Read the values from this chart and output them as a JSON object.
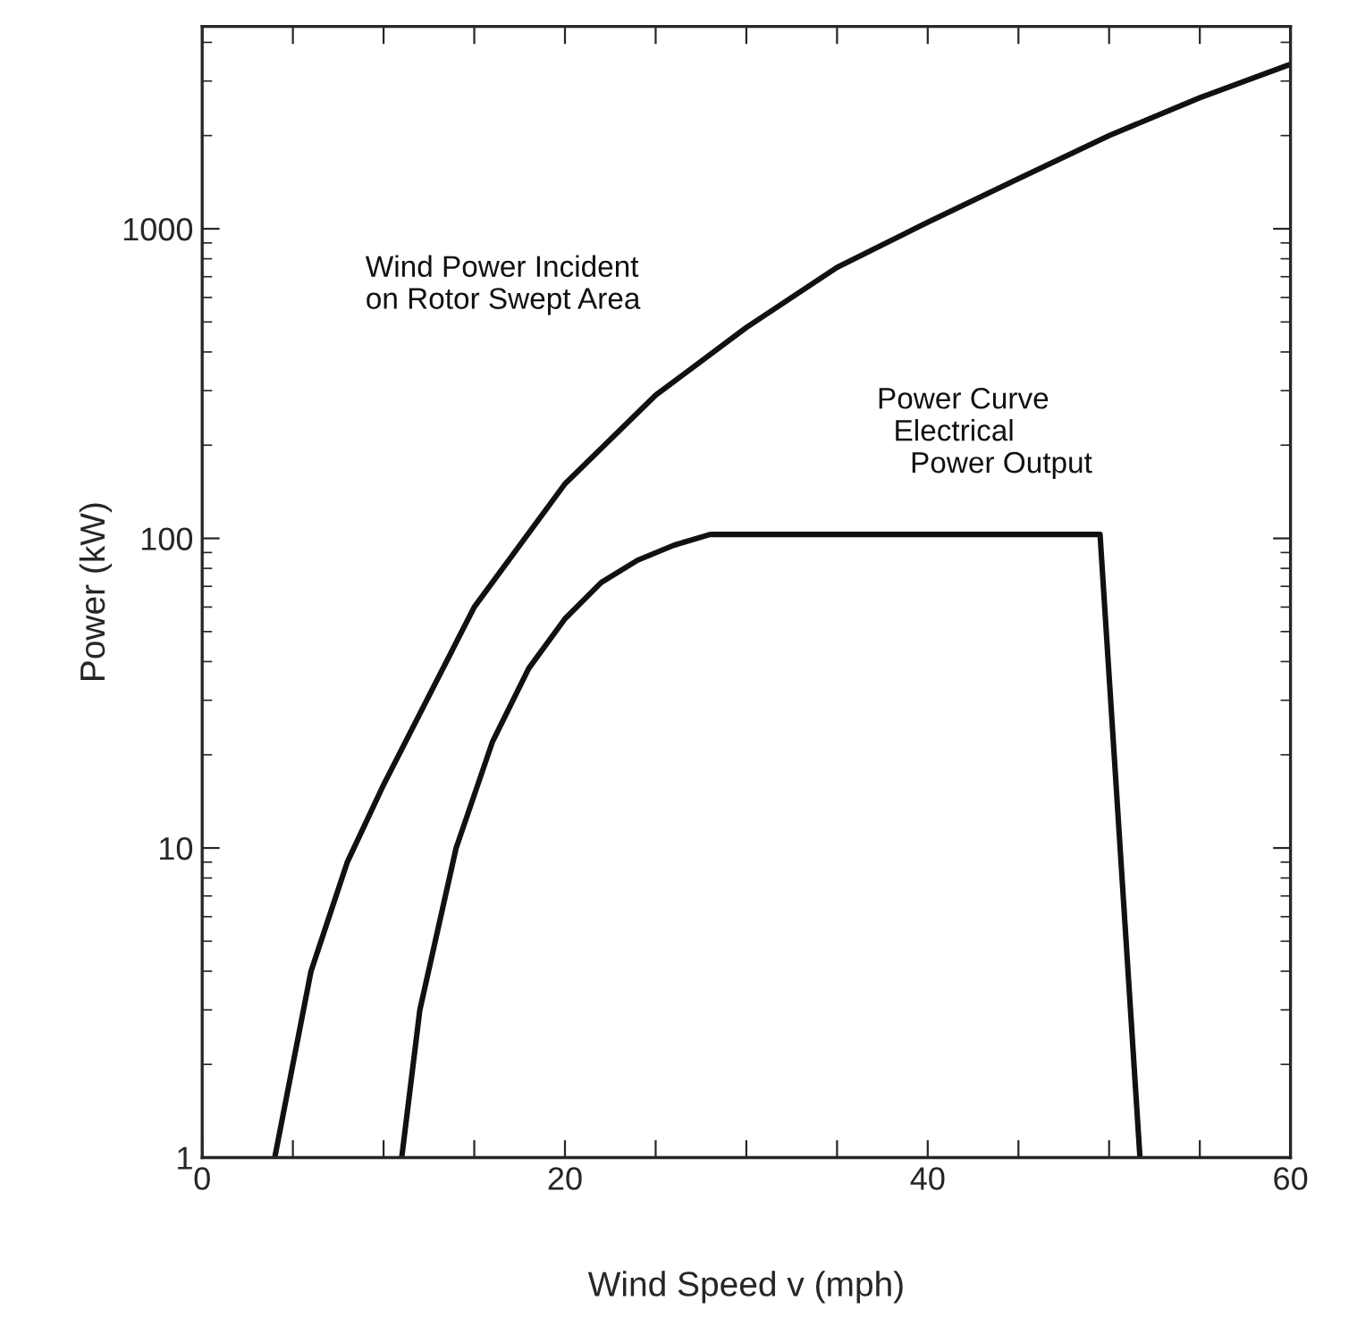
{
  "chart_data": {
    "type": "line",
    "xlabel": "Wind Speed v (mph)",
    "ylabel": "Power (kW)",
    "log": "y",
    "xlim": [
      0,
      60
    ],
    "ylim": [
      1,
      4500
    ],
    "xticks": [
      0,
      {
        "value": 5,
        "label": null
      },
      {
        "value": 10,
        "label": null
      },
      {
        "value": 15,
        "label": null
      },
      20,
      {
        "value": 25,
        "label": null
      },
      {
        "value": 30,
        "label": null
      },
      {
        "value": 35,
        "label": null
      },
      40,
      {
        "value": 45,
        "label": null
      },
      {
        "value": 50,
        "label": null
      },
      {
        "value": 55,
        "label": null
      },
      60
    ],
    "yticks": [
      1,
      10,
      100,
      1000
    ],
    "grid": false,
    "legend": false,
    "marker": "none",
    "line_style": "solid",
    "series": [
      {
        "name": "Wind Power Incident\non Rotor Swept Area",
        "color": "#111111",
        "x": [
          4,
          6,
          8,
          10,
          15,
          20,
          25,
          30,
          35,
          40,
          45,
          50,
          55,
          60
        ],
        "values": [
          1,
          4,
          9,
          16,
          60,
          150,
          290,
          480,
          750,
          1050,
          1450,
          2000,
          2650,
          3400
        ]
      },
      {
        "name": "Power Curve\n  Electrical\n    Power Output",
        "color": "#111111",
        "x": [
          11,
          12,
          14,
          16,
          18,
          20,
          22,
          24,
          26,
          28,
          49.5,
          51.7
        ],
        "values": [
          1,
          3,
          10,
          22,
          38,
          55,
          72,
          85,
          95,
          103,
          103,
          1
        ]
      }
    ]
  }
}
